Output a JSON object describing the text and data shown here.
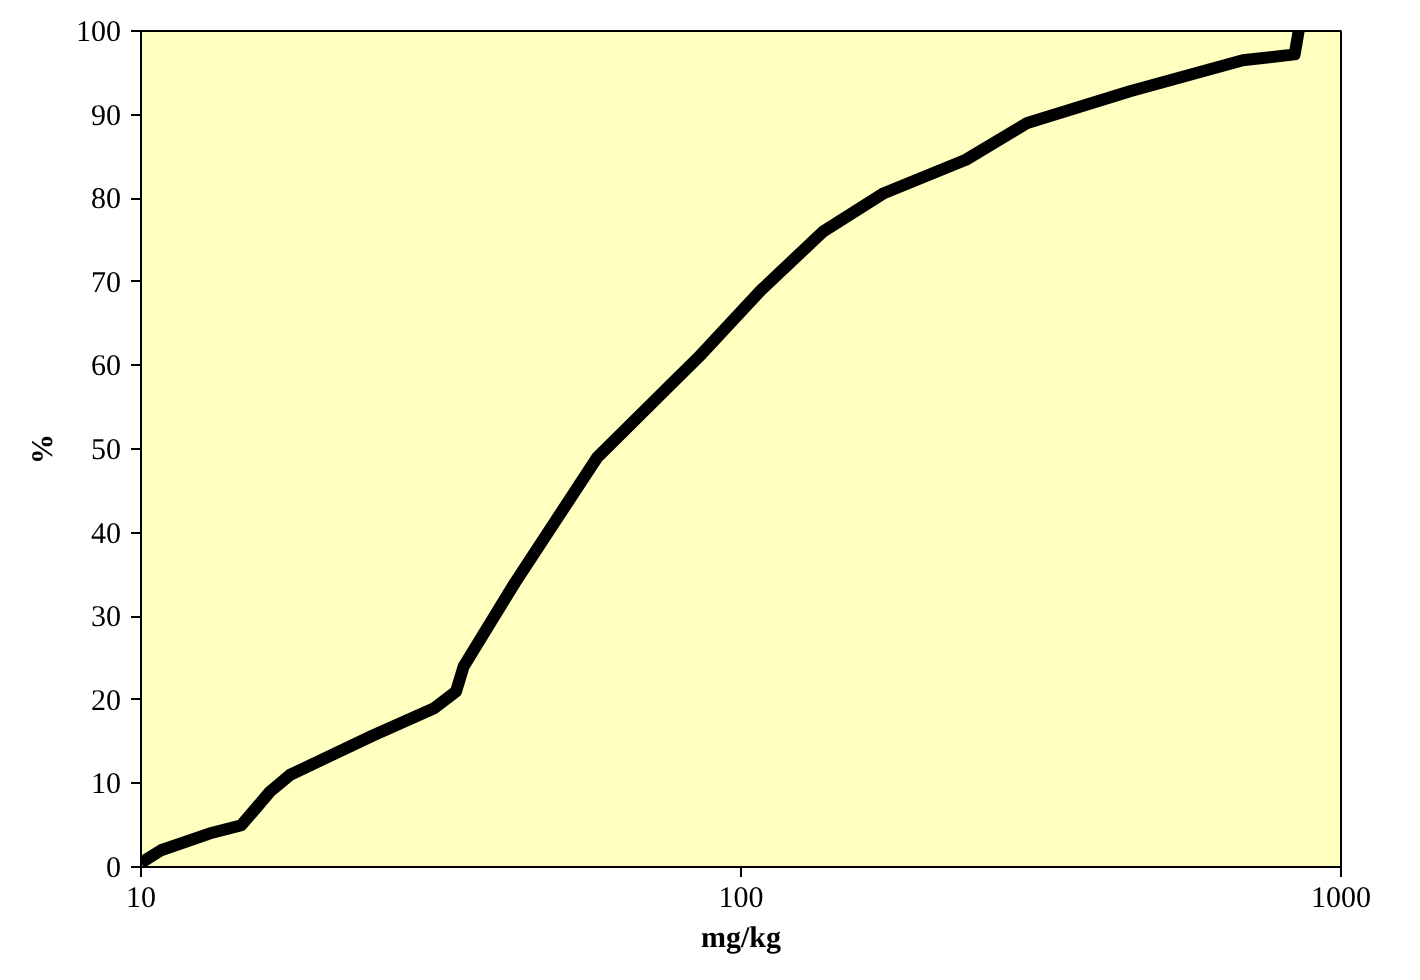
{
  "chart_data": {
    "type": "line",
    "xlabel": "mg/kg",
    "ylabel": "%",
    "x": [
      10,
      10.8,
      13,
      14.7,
      16.4,
      17.7,
      24.3,
      30.8,
      33.5,
      34.5,
      42,
      57.6,
      85,
      108,
      137,
      173,
      237,
      300,
      445,
      686,
      837,
      850
    ],
    "series": [
      {
        "color": "#000000",
        "values": [
          0.5,
          2,
          4,
          5,
          9,
          11,
          15.7,
          19,
          21,
          24,
          34,
          49,
          61,
          69,
          76,
          80.6,
          84.6,
          89,
          92.8,
          96.5,
          97.2,
          100
        ]
      }
    ],
    "xlim": [
      10,
      1000
    ],
    "ylim": [
      0,
      100
    ],
    "log": "x",
    "xticks": [
      10,
      100,
      1000
    ],
    "yticks": [
      0,
      10,
      20,
      30,
      40,
      50,
      60,
      70,
      80,
      90,
      100
    ],
    "grid": false,
    "marker": "none",
    "line_style": "solid"
  }
}
